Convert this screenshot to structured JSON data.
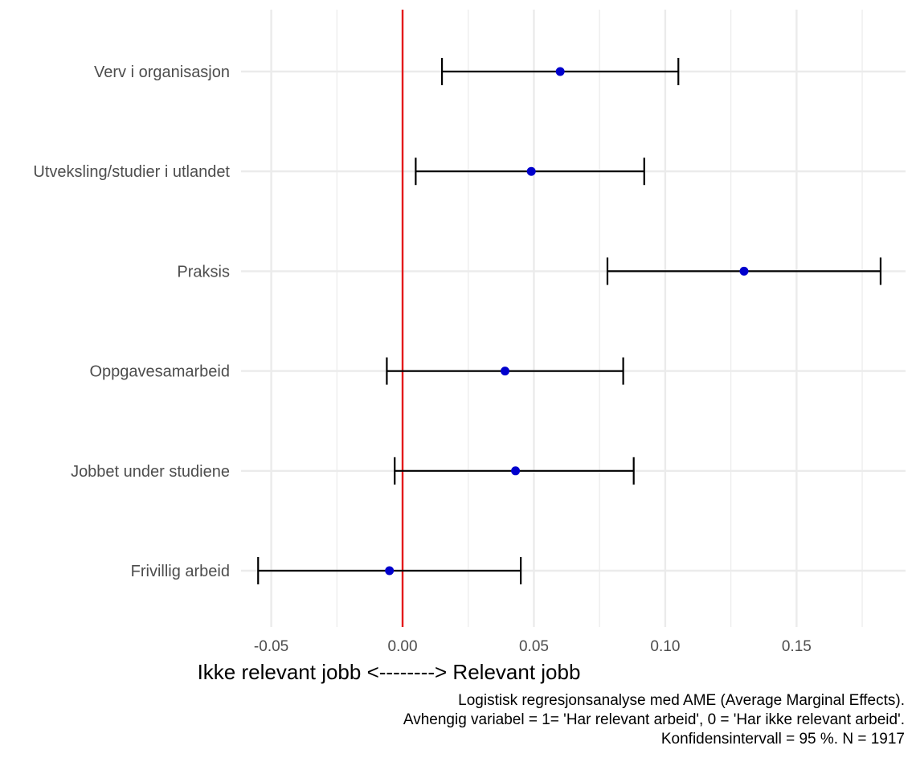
{
  "chart_data": {
    "type": "scatter",
    "subtype": "coefficient-plot-with-error-bars",
    "orientation": "horizontal",
    "categories": [
      "Verv i organisasjon",
      "Utveksling/studier i utlandet",
      "Praksis",
      "Oppgavesamarbeid",
      "Jobbet under studiene",
      "Frivillig arbeid"
    ],
    "estimates": [
      0.06,
      0.049,
      0.13,
      0.039,
      0.043,
      -0.005
    ],
    "ci_low": [
      0.015,
      0.005,
      0.078,
      -0.006,
      -0.003,
      -0.055
    ],
    "ci_high": [
      0.105,
      0.092,
      0.182,
      0.084,
      0.088,
      0.045
    ],
    "xlim": [
      -0.0615,
      0.1915
    ],
    "x_ticks": [
      -0.05,
      0.0,
      0.05,
      0.1,
      0.15
    ],
    "x_tick_labels": [
      "-0.05",
      "0.00",
      "0.05",
      "0.10",
      "0.15"
    ],
    "reference_line_x": 0,
    "xlabel": "Ikke relevant jobb <--------> Relevant jobb",
    "ylabel": "",
    "title": "",
    "grid": true,
    "colors": {
      "point": "#0000cd",
      "errorbar": "#000000",
      "reference_line": "#e41a1c",
      "grid": "#ebebeb"
    }
  },
  "caption": {
    "line1": "Logistisk regresjonsanalyse med AME (Average Marginal Effects).",
    "line2": "Avhengig variabel = 1= 'Har relevant arbeid', 0 = 'Har ikke relevant arbeid'.",
    "line3": "Konfidensintervall = 95 %. N = 1917"
  }
}
